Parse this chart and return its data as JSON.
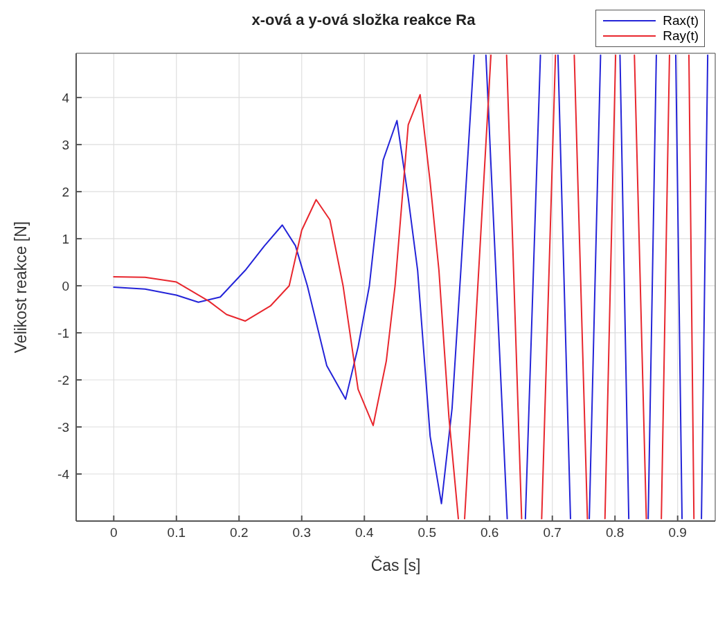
{
  "chart_data": {
    "type": "line",
    "title": "x-ová a y-ová složka reakce Ra",
    "xlabel": "Čas [s]",
    "ylabel": "Velikost reakce [N]",
    "xlim": [
      -0.06,
      0.96
    ],
    "ylim": [
      -5,
      4.94
    ],
    "xticks": [
      0,
      0.1,
      0.2,
      0.3,
      0.4,
      0.5,
      0.6,
      0.7,
      0.8,
      0.9
    ],
    "yticks": [
      -4,
      -3,
      -2,
      -1,
      0,
      1,
      2,
      3,
      4
    ],
    "grid": true,
    "legend": "top right",
    "line_style": "solid",
    "marker": "none",
    "series": [
      {
        "name": "Rax(t)",
        "color": "#2323d8",
        "x": [
          0,
          0.05,
          0.1,
          0.135,
          0.17,
          0.21,
          0.24,
          0.269,
          0.29,
          0.309,
          0.34,
          0.37,
          0.39,
          0.408,
          0.43,
          0.452,
          0.47,
          0.485,
          0.505,
          0.523,
          0.54,
          0.554,
          0.575,
          0.585,
          0.594,
          0.628,
          0.64,
          0.657,
          0.681,
          0.695,
          0.709,
          0.729,
          0.744,
          0.759,
          0.777,
          0.792,
          0.808,
          0.822,
          0.838,
          0.853,
          0.866,
          0.882,
          0.897,
          0.907,
          0.923,
          0.938,
          0.948
        ],
        "values": [
          -0.03,
          -0.07,
          -0.2,
          -0.35,
          -0.24,
          0.33,
          0.84,
          1.29,
          0.85,
          0,
          -1.7,
          -2.41,
          -1.3,
          0,
          2.67,
          3.51,
          1.87,
          0.33,
          -3.2,
          -4.63,
          -2.6,
          0.33,
          4.9,
          null,
          4.9,
          -4.95,
          null,
          -4.95,
          4.9,
          null,
          4.9,
          -4.95,
          null,
          -4.95,
          4.9,
          null,
          4.9,
          -4.95,
          null,
          -4.95,
          4.9,
          null,
          4.9,
          -4.95,
          null,
          -4.95,
          4.9
        ]
      },
      {
        "name": "Ray(t)",
        "color": "#e8262d",
        "x": [
          0,
          0.05,
          0.1,
          0.152,
          0.18,
          0.21,
          0.25,
          0.28,
          0.3,
          0.323,
          0.345,
          0.366,
          0.39,
          0.414,
          0.435,
          0.449,
          0.47,
          0.489,
          0.505,
          0.519,
          0.535,
          0.55,
          0.555,
          0.56,
          0.602,
          0.615,
          0.627,
          0.651,
          0.668,
          0.683,
          0.705,
          0.72,
          0.735,
          0.756,
          0.77,
          0.784,
          0.801,
          0.816,
          0.831,
          0.85,
          0.862,
          0.874,
          0.887,
          0.902,
          0.918,
          0.926
        ],
        "values": [
          0.19,
          0.18,
          0.08,
          -0.33,
          -0.61,
          -0.75,
          -0.43,
          0,
          1.18,
          1.83,
          1.4,
          0,
          -2.2,
          -2.97,
          -1.6,
          0,
          3.42,
          4.06,
          2.2,
          0.33,
          -2.8,
          -4.95,
          null,
          -4.95,
          4.9,
          null,
          4.9,
          -4.95,
          null,
          -4.95,
          4.9,
          null,
          4.9,
          -4.95,
          null,
          -4.95,
          4.9,
          null,
          4.9,
          -4.95,
          null,
          -4.95,
          4.9,
          null,
          4.9,
          -4.95
        ]
      }
    ]
  }
}
